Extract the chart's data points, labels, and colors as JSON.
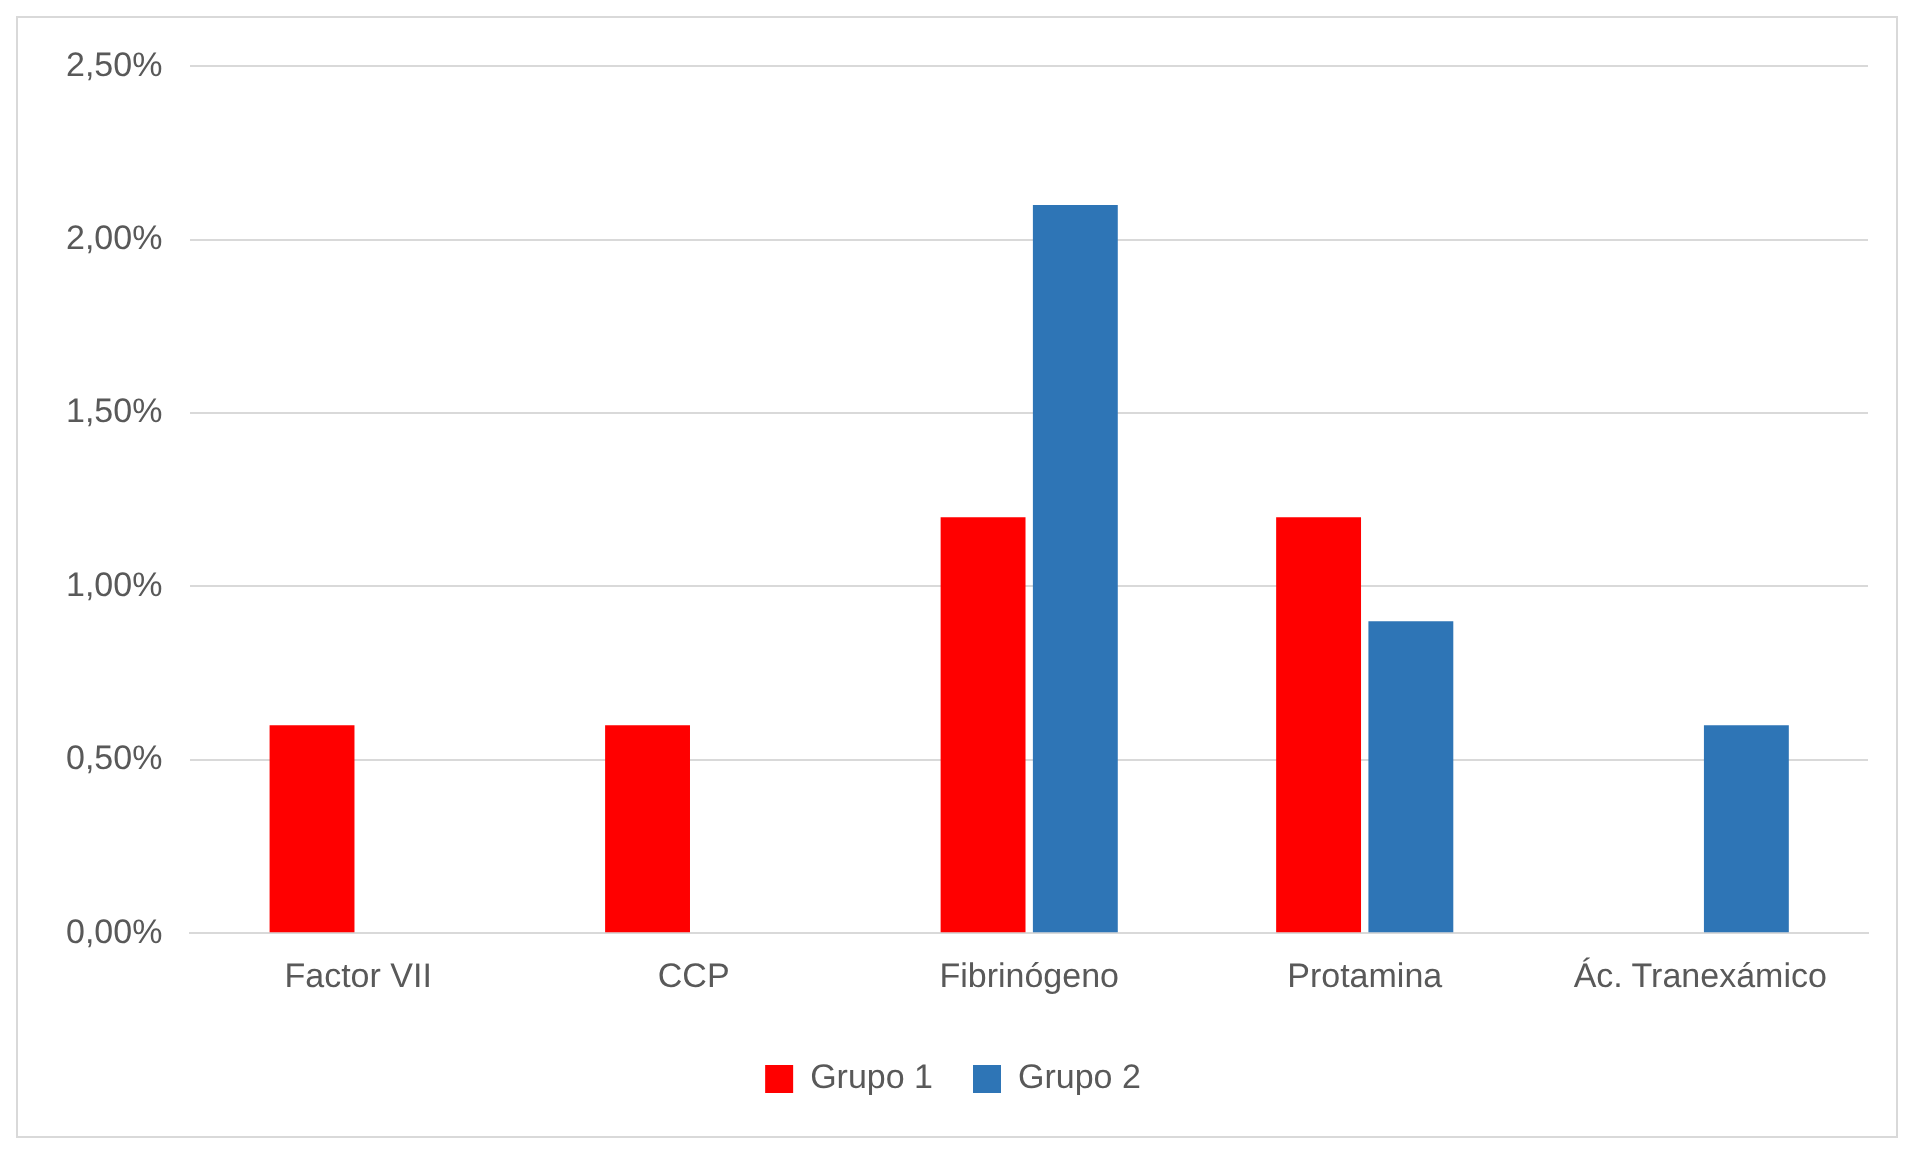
{
  "chart_data": {
    "type": "bar",
    "categories": [
      "Factor VII",
      "CCP",
      "Fibrinógeno",
      "Protamina",
      "Ác. Tranexámico"
    ],
    "series": [
      {
        "name": "Grupo 1",
        "color": "#ff0000",
        "values": [
          0.6,
          0.6,
          1.2,
          1.2,
          null
        ]
      },
      {
        "name": "Grupo 2",
        "color": "#2e75b6",
        "values": [
          null,
          null,
          2.1,
          0.9,
          0.6
        ]
      }
    ],
    "ylim": [
      0,
      2.5
    ],
    "yticks": [
      {
        "value": 0,
        "label": "0,00%"
      },
      {
        "value": 0.5,
        "label": "0,50%"
      },
      {
        "value": 1,
        "label": "1,00%"
      },
      {
        "value": 1.5,
        "label": "1,50%"
      },
      {
        "value": 2,
        "label": "2,00%"
      },
      {
        "value": 2.5,
        "label": "2,50%"
      }
    ],
    "grid": "y",
    "legend": "bottom"
  }
}
